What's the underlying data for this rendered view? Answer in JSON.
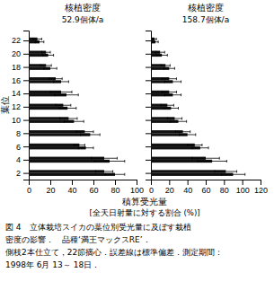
{
  "chart_data": [
    {
      "type": "bar",
      "orientation": "horizontal",
      "title": "核植密度",
      "subtitle": "52.9個体/a",
      "ylabel": "葉位",
      "xlabel": "積算受光量",
      "annotations": [
        "[全天日射量に対する割合 (%)]",
        "図 4　立体栽培スイカの葉位別受光量に及ぼす栽植",
        "密度の影響．　品種‘満王マックスRE’．",
        "側枝2本仕立て，22節摘心．誤差線は標準偏差．測定期間：",
        "1998年 6月 13～ 18日．"
      ],
      "categories": [
        2,
        4,
        6,
        8,
        10,
        12,
        14,
        16,
        18,
        20,
        22
      ],
      "series": [
        {
          "color": "#111111",
          "values": [
            70,
            70,
            47,
            52,
            37,
            32,
            30,
            25,
            16,
            16,
            8
          ],
          "errors": [
            8,
            12,
            5,
            8,
            8,
            7,
            10,
            6,
            5,
            4,
            4
          ]
        },
        {
          "color": "#111111",
          "values": [
            80,
            75,
            53,
            57,
            42,
            36,
            35,
            30,
            20,
            18,
            10
          ],
          "errors": [
            9,
            14,
            7,
            9,
            9,
            8,
            11,
            7,
            6,
            5,
            4
          ]
        }
      ],
      "xlim": [
        0,
        100
      ],
      "xticks": [
        0,
        20,
        40,
        60,
        80,
        100
      ],
      "ylim": [
        1,
        23.5
      ],
      "yticks": [
        2,
        4,
        6,
        8,
        10,
        12,
        14,
        16,
        18,
        20,
        22
      ]
    },
    {
      "type": "bar",
      "orientation": "horizontal",
      "title": "核植密度",
      "subtitle": "158.7個体/a",
      "tick_labels": "x",
      "categories": [
        2,
        4,
        6,
        8,
        10,
        12,
        14,
        16,
        18,
        20,
        22
      ],
      "series": [
        {
          "color": "#111111",
          "values": [
            82,
            60,
            48,
            35,
            26,
            18,
            20,
            20,
            16,
            10,
            4
          ],
          "errors": [
            12,
            15,
            8,
            8,
            8,
            7,
            8,
            8,
            5,
            5,
            2
          ]
        },
        {
          "color": "#111111",
          "values": [
            90,
            67,
            54,
            40,
            30,
            22,
            24,
            24,
            20,
            12,
            5
          ],
          "errors": [
            13,
            16,
            9,
            9,
            9,
            8,
            9,
            9,
            6,
            6,
            3
          ]
        }
      ],
      "xlim": [
        0,
        120
      ],
      "xticks": [
        0,
        20,
        40,
        60,
        80,
        100,
        120
      ],
      "ylim": [
        1,
        23.5
      ],
      "yticks": [
        2,
        4,
        6,
        8,
        10,
        12,
        14,
        16,
        18,
        20,
        22
      ]
    }
  ]
}
